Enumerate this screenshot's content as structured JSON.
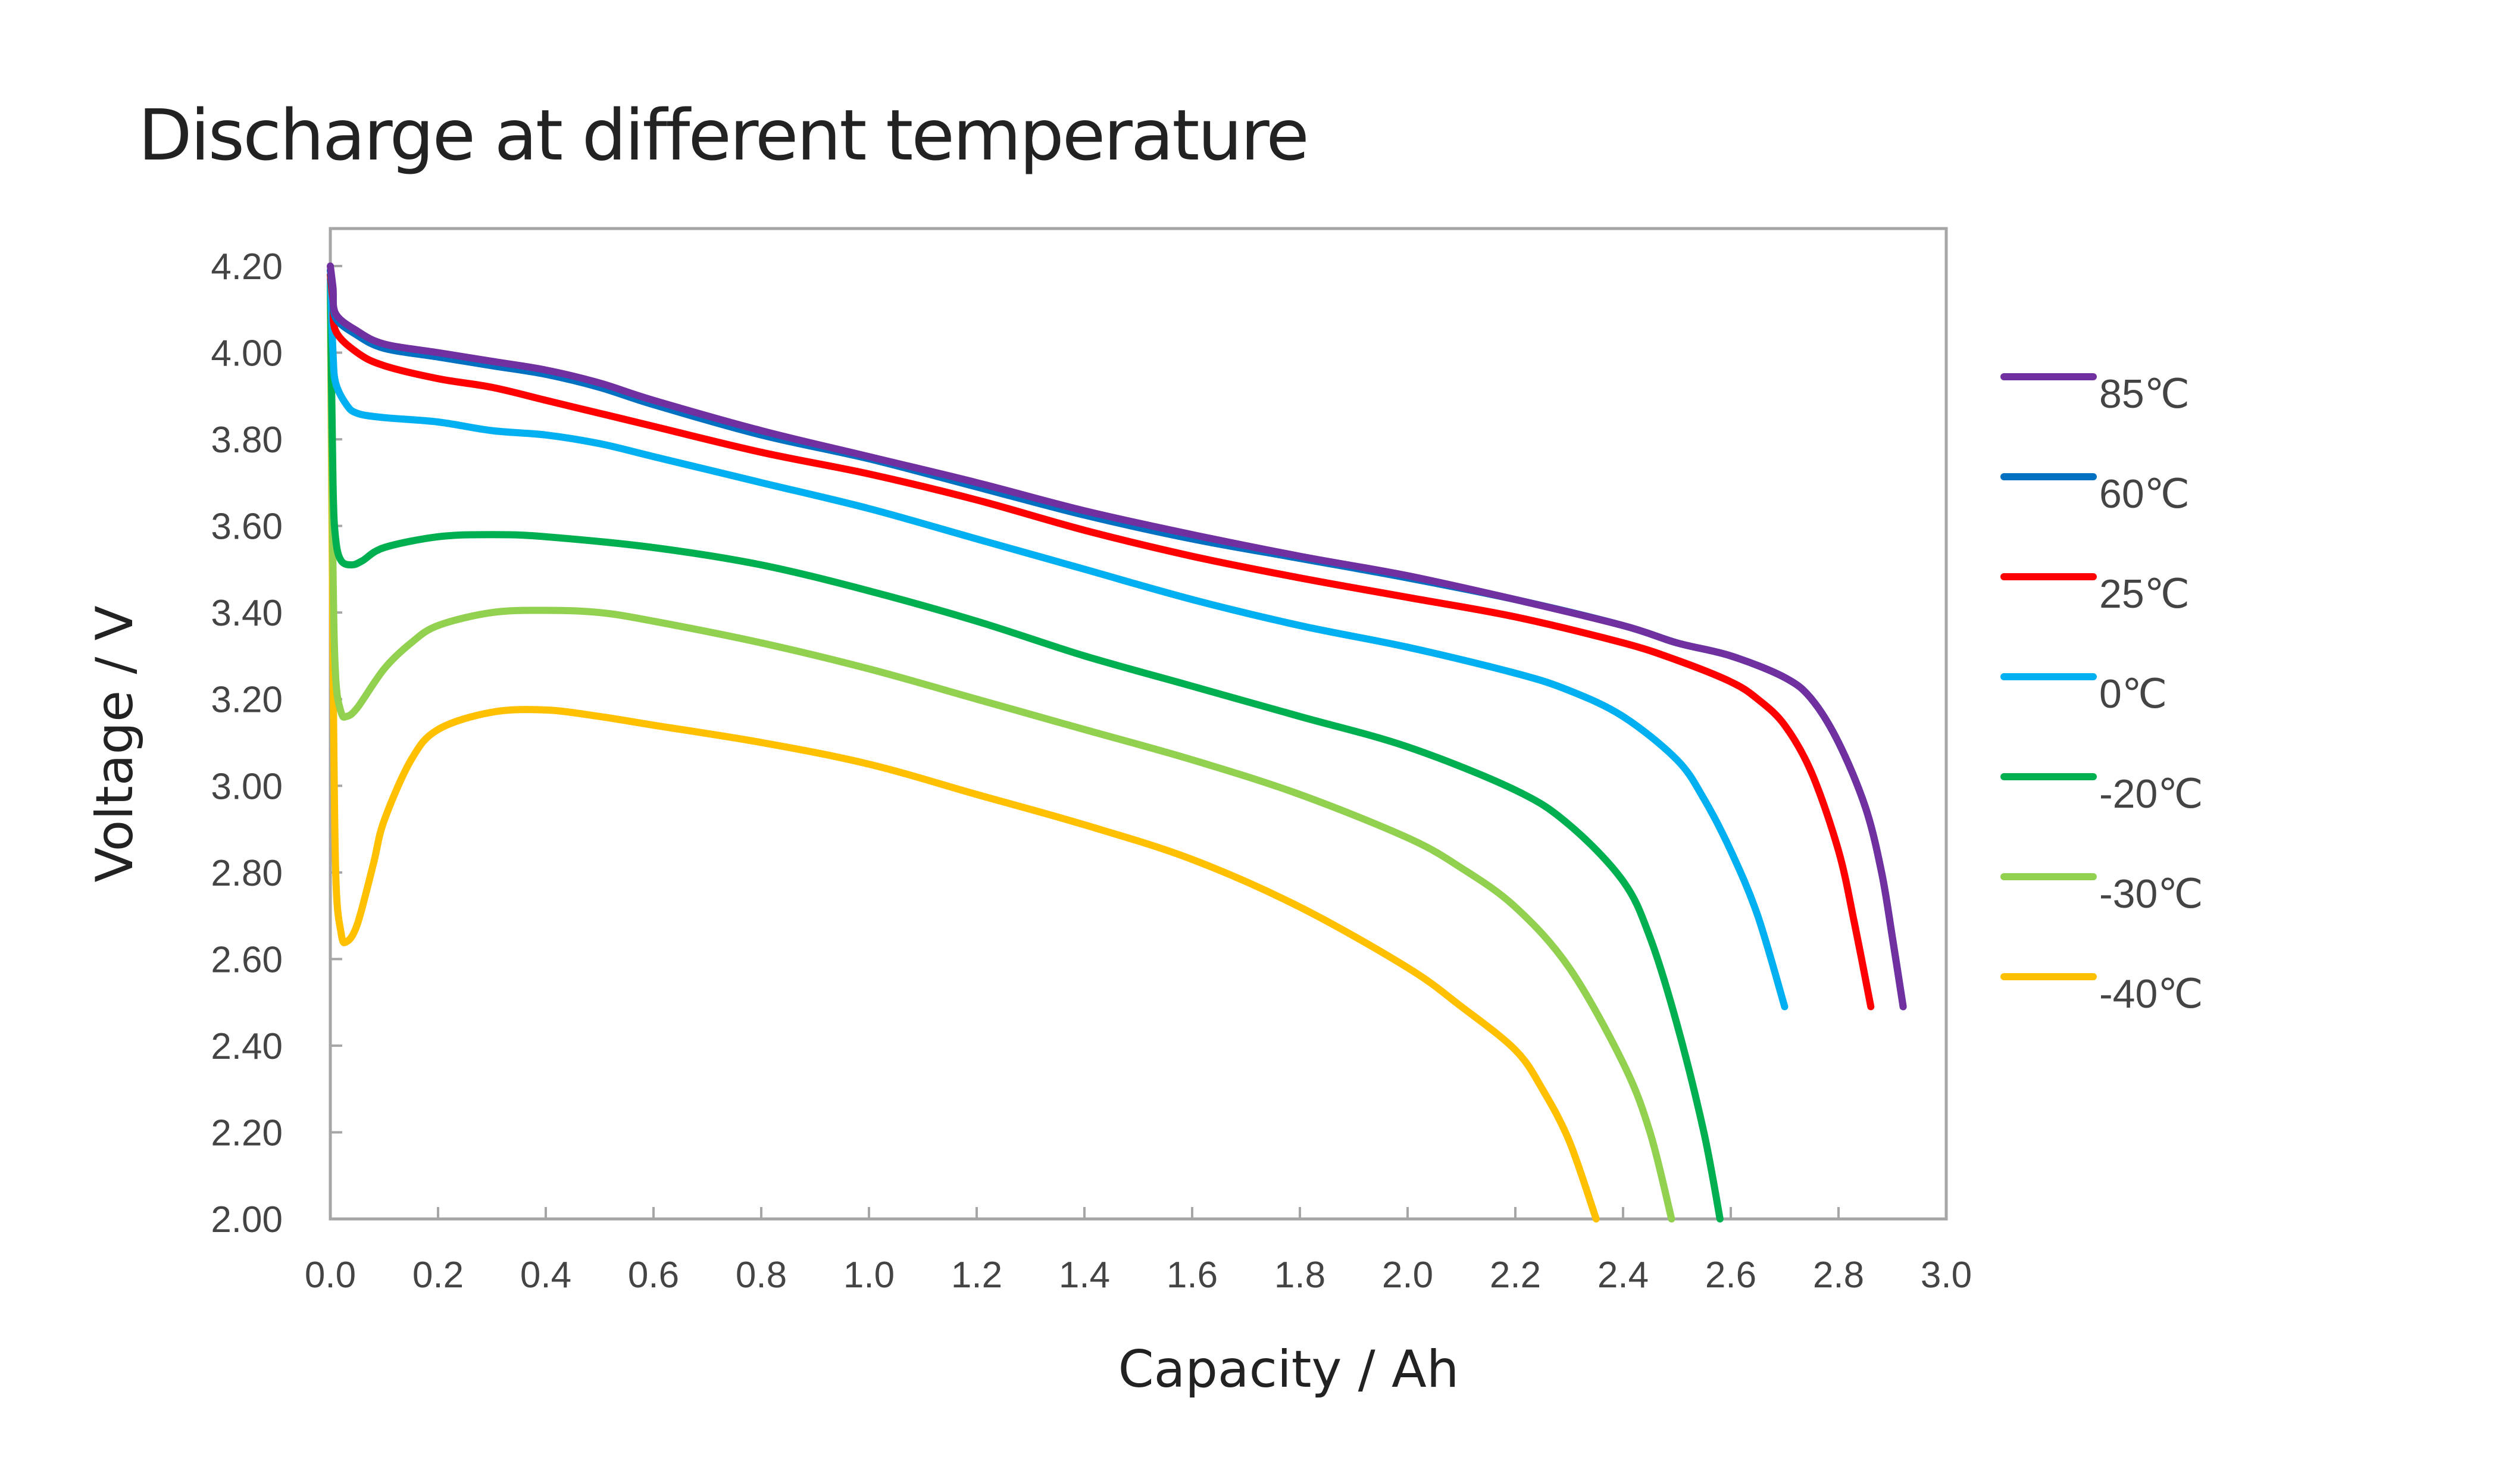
{
  "chart_data": {
    "type": "line",
    "title": "Discharge at different temperature",
    "xlabel": "Capacity / Ah",
    "ylabel": "Voltage / V",
    "xlim": [
      0.0,
      3.0
    ],
    "ylim": [
      2.0,
      4.2
    ],
    "xticks": [
      "0.0",
      "0.2",
      "0.4",
      "0.6",
      "0.8",
      "1.0",
      "1.2",
      "1.4",
      "1.6",
      "1.8",
      "2.0",
      "2.2",
      "2.4",
      "2.6",
      "2.8",
      "3.0"
    ],
    "yticks": [
      "2.00",
      "2.20",
      "2.40",
      "2.60",
      "2.80",
      "3.00",
      "3.20",
      "3.40",
      "3.60",
      "3.80",
      "4.00",
      "4.20"
    ],
    "grid": false,
    "legend_position": "right",
    "series": [
      {
        "name": "85℃",
        "color": "#7030a0",
        "x": [
          0.0,
          0.005,
          0.01,
          0.05,
          0.1,
          0.2,
          0.3,
          0.4,
          0.5,
          0.6,
          0.8,
          1.0,
          1.2,
          1.4,
          1.6,
          1.8,
          2.0,
          2.2,
          2.4,
          2.5,
          2.6,
          2.7,
          2.75,
          2.8,
          2.85,
          2.88,
          2.9,
          2.92
        ],
        "y": [
          4.2,
          4.15,
          4.09,
          4.05,
          4.02,
          4.0,
          3.98,
          3.96,
          3.93,
          3.89,
          3.82,
          3.76,
          3.7,
          3.635,
          3.58,
          3.53,
          3.485,
          3.43,
          3.37,
          3.33,
          3.3,
          3.25,
          3.2,
          3.1,
          2.95,
          2.8,
          2.65,
          2.49
        ]
      },
      {
        "name": "60℃",
        "color": "#0070c0",
        "x": [
          0.0,
          0.005,
          0.01,
          0.05,
          0.1,
          0.2,
          0.3,
          0.4,
          0.5,
          0.6,
          0.8,
          1.0,
          1.2,
          1.4,
          1.6,
          1.8,
          2.0,
          2.2,
          2.4,
          2.5,
          2.6,
          2.7,
          2.75,
          2.8,
          2.85,
          2.88,
          2.9,
          2.92
        ],
        "y": [
          4.19,
          4.14,
          4.08,
          4.04,
          4.01,
          3.99,
          3.97,
          3.95,
          3.92,
          3.88,
          3.81,
          3.755,
          3.69,
          3.625,
          3.57,
          3.525,
          3.48,
          3.43,
          3.37,
          3.33,
          3.3,
          3.25,
          3.2,
          3.1,
          2.95,
          2.8,
          2.65,
          2.49
        ]
      },
      {
        "name": "25℃",
        "color": "#ff0000",
        "x": [
          0.0,
          0.005,
          0.01,
          0.05,
          0.1,
          0.2,
          0.3,
          0.4,
          0.5,
          0.6,
          0.8,
          1.0,
          1.2,
          1.4,
          1.6,
          1.8,
          2.0,
          2.2,
          2.4,
          2.5,
          2.6,
          2.65,
          2.7,
          2.75,
          2.8,
          2.83,
          2.86
        ],
        "y": [
          4.18,
          4.12,
          4.05,
          4.0,
          3.97,
          3.94,
          3.92,
          3.89,
          3.86,
          3.83,
          3.77,
          3.72,
          3.66,
          3.59,
          3.53,
          3.48,
          3.435,
          3.39,
          3.33,
          3.29,
          3.24,
          3.2,
          3.14,
          3.03,
          2.85,
          2.68,
          2.49
        ]
      },
      {
        "name": "0℃",
        "color": "#00b0f0",
        "x": [
          0.0,
          0.005,
          0.01,
          0.03,
          0.05,
          0.1,
          0.2,
          0.3,
          0.4,
          0.5,
          0.6,
          0.8,
          1.0,
          1.2,
          1.4,
          1.6,
          1.8,
          2.0,
          2.2,
          2.3,
          2.4,
          2.5,
          2.55,
          2.6,
          2.65,
          2.7
        ],
        "y": [
          4.17,
          4.0,
          3.93,
          3.88,
          3.86,
          3.85,
          3.84,
          3.82,
          3.81,
          3.79,
          3.76,
          3.7,
          3.64,
          3.57,
          3.5,
          3.43,
          3.37,
          3.32,
          3.26,
          3.22,
          3.16,
          3.06,
          2.97,
          2.85,
          2.7,
          2.49
        ]
      },
      {
        "name": "-20℃",
        "color": "#00b050",
        "x": [
          0.0,
          0.005,
          0.01,
          0.02,
          0.04,
          0.06,
          0.1,
          0.2,
          0.3,
          0.4,
          0.6,
          0.8,
          1.0,
          1.2,
          1.4,
          1.6,
          1.8,
          2.0,
          2.2,
          2.3,
          2.4,
          2.45,
          2.5,
          2.55,
          2.58
        ],
        "y": [
          4.16,
          3.7,
          3.57,
          3.52,
          3.51,
          3.52,
          3.55,
          3.575,
          3.58,
          3.575,
          3.55,
          3.51,
          3.45,
          3.38,
          3.3,
          3.23,
          3.16,
          3.09,
          2.99,
          2.91,
          2.78,
          2.65,
          2.45,
          2.2,
          2.0
        ]
      },
      {
        "name": "-30℃",
        "color": "#92d050",
        "x": [
          0.0,
          0.005,
          0.01,
          0.02,
          0.03,
          0.05,
          0.1,
          0.15,
          0.2,
          0.3,
          0.4,
          0.5,
          0.6,
          0.8,
          1.0,
          1.2,
          1.4,
          1.6,
          1.8,
          2.0,
          2.1,
          2.2,
          2.3,
          2.4,
          2.45,
          2.49
        ],
        "y": [
          4.15,
          3.5,
          3.25,
          3.17,
          3.16,
          3.18,
          3.27,
          3.33,
          3.37,
          3.4,
          3.405,
          3.4,
          3.38,
          3.33,
          3.27,
          3.2,
          3.13,
          3.06,
          2.98,
          2.88,
          2.81,
          2.72,
          2.58,
          2.36,
          2.2,
          2.0
        ]
      },
      {
        "name": "-40℃",
        "color": "#ffc000",
        "x": [
          0.0,
          0.005,
          0.01,
          0.02,
          0.03,
          0.05,
          0.08,
          0.1,
          0.15,
          0.2,
          0.3,
          0.4,
          0.5,
          0.6,
          0.8,
          1.0,
          1.2,
          1.4,
          1.6,
          1.8,
          2.0,
          2.1,
          2.2,
          2.25,
          2.3,
          2.35
        ],
        "y": [
          4.15,
          3.3,
          2.8,
          2.66,
          2.64,
          2.68,
          2.82,
          2.92,
          3.06,
          3.13,
          3.17,
          3.175,
          3.16,
          3.14,
          3.1,
          3.05,
          2.98,
          2.91,
          2.83,
          2.72,
          2.58,
          2.49,
          2.39,
          2.3,
          2.18,
          2.0
        ]
      }
    ]
  }
}
